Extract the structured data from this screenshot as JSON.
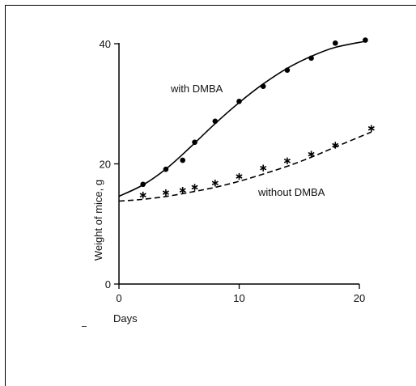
{
  "chart_data": {
    "type": "scatter",
    "title": "",
    "xlabel": "Days",
    "ylabel": "Weight of mice, g",
    "xlim": [
      0,
      20
    ],
    "ylim": [
      0,
      40
    ],
    "xticks": [
      0,
      10,
      20
    ],
    "yticks": [
      0,
      20,
      40
    ],
    "grid": false,
    "series": [
      {
        "name": "with DMBA",
        "marker": "dot",
        "line_style": "solid",
        "x": [
          2,
          3.9,
          5.3,
          6.3,
          8,
          10,
          12,
          14,
          16,
          18,
          20.5
        ],
        "y": [
          16.6,
          19.1,
          20.6,
          23.6,
          27.1,
          30.4,
          32.9,
          35.6,
          37.6,
          40.1,
          40.6
        ],
        "fit": {
          "x": [
            0,
            2,
            4,
            6,
            8,
            10,
            12,
            14,
            16,
            18,
            20.5
          ],
          "y": [
            14.6,
            16.5,
            19.3,
            22.9,
            26.7,
            30.2,
            33.3,
            35.9,
            37.9,
            39.4,
            40.4
          ]
        }
      },
      {
        "name": "without DMBA",
        "marker": "asterisk",
        "line_style": "dashed",
        "x": [
          2,
          3.9,
          5.3,
          6.3,
          8,
          10,
          12,
          14,
          16,
          18,
          21
        ],
        "y": [
          14.8,
          15.2,
          15.6,
          16.1,
          16.8,
          17.9,
          19.3,
          20.5,
          21.6,
          23.1,
          25.9
        ],
        "fit": {
          "x": [
            0,
            2,
            4,
            6,
            8,
            10,
            12,
            14,
            16,
            18,
            21
          ],
          "y": [
            13.8,
            14.1,
            14.6,
            15.3,
            16.1,
            17.1,
            18.3,
            19.6,
            21.1,
            22.8,
            25.3
          ]
        }
      }
    ],
    "annotations": [
      "with DMBA",
      "without DMBA"
    ]
  }
}
